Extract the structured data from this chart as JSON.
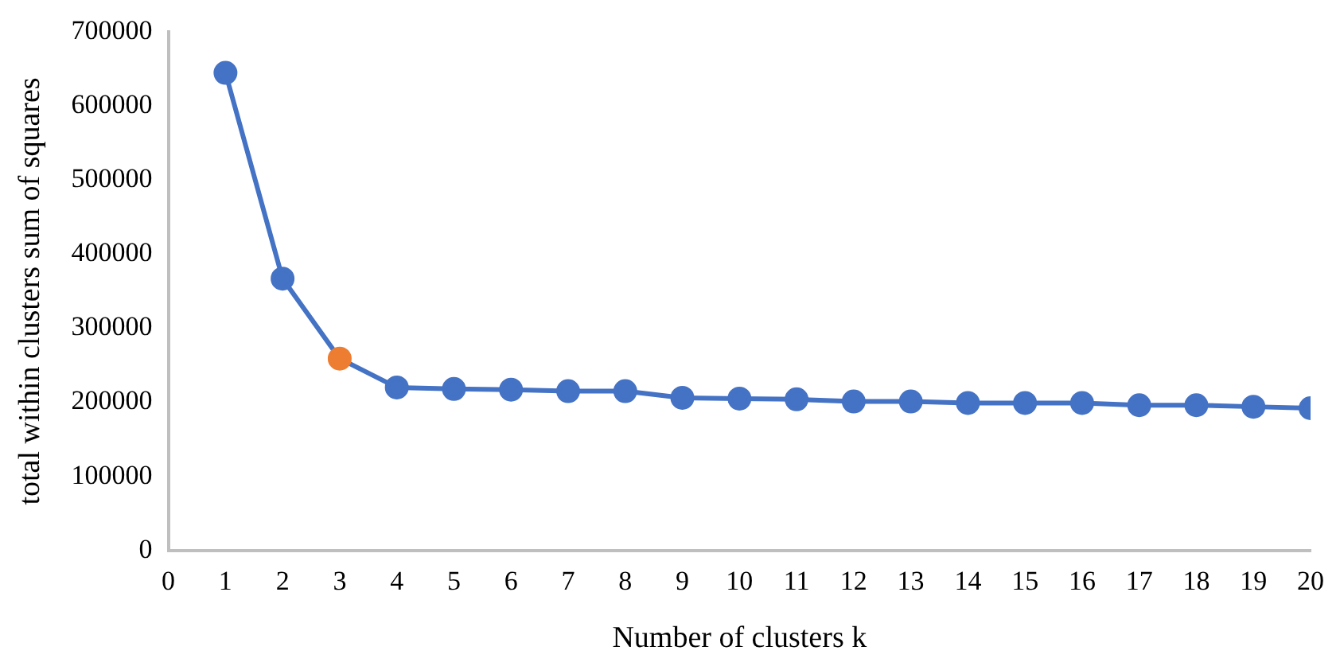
{
  "chart_data": {
    "type": "line",
    "xlabel": "Number of clusters k",
    "ylabel": "total within clusters sum of squares",
    "x": [
      1,
      2,
      3,
      4,
      5,
      6,
      7,
      8,
      9,
      10,
      11,
      12,
      13,
      14,
      15,
      16,
      17,
      18,
      19,
      20
    ],
    "series": [
      {
        "color": "#4472c4",
        "colors": [
          "#4472c4",
          "#4472c4",
          "#ed7d31",
          "#4472c4",
          "#4472c4",
          "#4472c4",
          "#4472c4",
          "#4472c4",
          "#4472c4",
          "#4472c4",
          "#4472c4",
          "#4472c4",
          "#4472c4",
          "#4472c4",
          "#4472c4",
          "#4472c4",
          "#4472c4",
          "#4472c4",
          "#4472c4",
          "#4472c4"
        ],
        "values": [
          645000,
          367000,
          259000,
          220000,
          218000,
          217000,
          215000,
          215000,
          206000,
          205000,
          204000,
          201000,
          201000,
          199000,
          199000,
          199000,
          196000,
          196000,
          194000,
          192000
        ]
      }
    ],
    "xlim": [
      0,
      20
    ],
    "xticks": [
      0,
      1,
      2,
      3,
      4,
      5,
      6,
      7,
      8,
      9,
      10,
      11,
      12,
      13,
      14,
      15,
      16,
      17,
      18,
      19,
      20
    ],
    "ylim": [
      0,
      700000
    ],
    "yticks": [
      0,
      100000,
      200000,
      300000,
      400000,
      500000,
      600000,
      700000
    ],
    "grid": false,
    "legend": false,
    "marker": "circle",
    "line_style": "solid"
  }
}
